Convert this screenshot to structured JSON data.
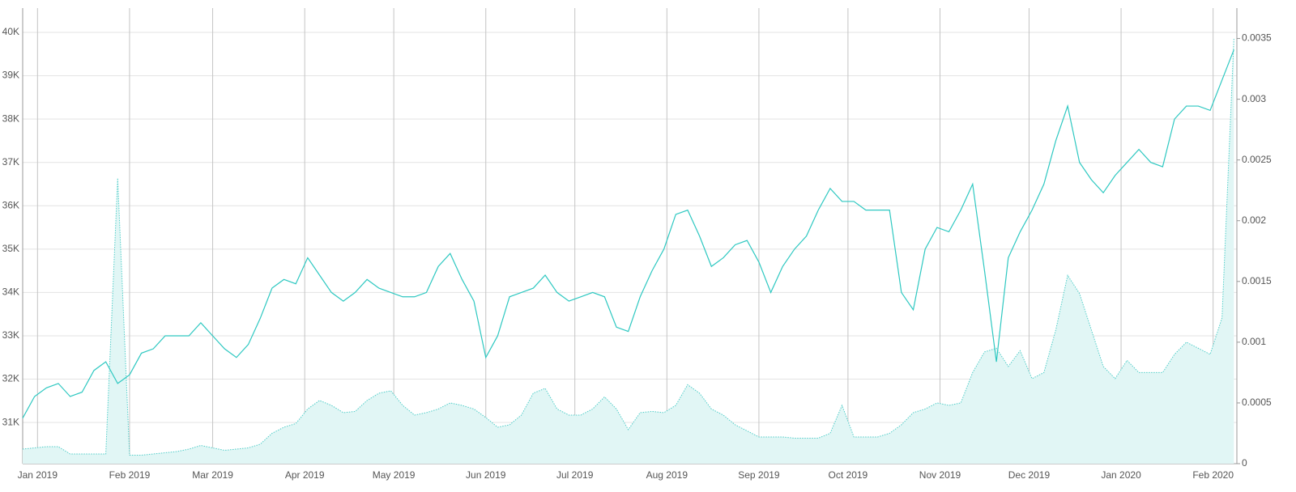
{
  "chart_data": {
    "type": "line",
    "color": "#2ec8c1",
    "area_color": "#e1f6f5",
    "area_stroke": "#4fcdc8",
    "x": [
      -5,
      -1,
      3,
      7,
      11,
      15,
      19,
      23,
      27,
      31,
      35,
      39,
      43,
      47,
      51,
      55,
      59,
      63,
      67,
      71,
      75,
      79,
      83,
      87,
      91,
      95,
      99,
      103,
      107,
      111,
      115,
      119,
      123,
      127,
      131,
      135,
      139,
      143,
      147,
      151,
      155,
      159,
      163,
      167,
      171,
      175,
      179,
      183,
      187,
      191,
      195,
      199,
      203,
      207,
      211,
      215,
      219,
      223,
      227,
      231,
      235,
      239,
      243,
      247,
      251,
      255,
      259,
      263,
      267,
      271,
      275,
      279,
      283,
      287,
      291,
      295,
      299,
      303,
      307,
      311,
      315,
      319,
      323,
      327,
      331,
      335,
      339,
      343,
      347,
      351,
      355,
      359,
      363,
      367,
      371,
      375,
      379,
      383,
      387,
      391,
      395,
      399,
      403
    ],
    "xlim": [
      -5,
      404
    ],
    "xticks": [
      {
        "value": 0,
        "label": "Jan 2019"
      },
      {
        "value": 31,
        "label": "Feb 2019"
      },
      {
        "value": 59,
        "label": "Mar 2019"
      },
      {
        "value": 90,
        "label": "Apr 2019"
      },
      {
        "value": 120,
        "label": "May 2019"
      },
      {
        "value": 151,
        "label": "Jun 2019"
      },
      {
        "value": 181,
        "label": "Jul 2019"
      },
      {
        "value": 212,
        "label": "Aug 2019"
      },
      {
        "value": 243,
        "label": "Sep 2019"
      },
      {
        "value": 273,
        "label": "Oct 2019"
      },
      {
        "value": 304,
        "label": "Nov 2019"
      },
      {
        "value": 334,
        "label": "Dec 2019"
      },
      {
        "value": 365,
        "label": "Jan 2020"
      },
      {
        "value": 396,
        "label": "Feb 2020"
      }
    ],
    "ylim": [
      30050,
      40560
    ],
    "yticks": [
      {
        "value": 31000,
        "label": "31K"
      },
      {
        "value": 32000,
        "label": "32K"
      },
      {
        "value": 33000,
        "label": "33K"
      },
      {
        "value": 34000,
        "label": "34K"
      },
      {
        "value": 35000,
        "label": "35K"
      },
      {
        "value": 36000,
        "label": "36K"
      },
      {
        "value": 37000,
        "label": "37K"
      },
      {
        "value": 38000,
        "label": "38K"
      },
      {
        "value": 39000,
        "label": "39K"
      },
      {
        "value": 40000,
        "label": "40K"
      }
    ],
    "y2lim": [
      0,
      0.00375
    ],
    "y2ticks": [
      0,
      0.0005,
      0.001,
      0.0015,
      0.002,
      0.0025,
      0.003,
      0.0035
    ],
    "series": [
      {
        "type": "area",
        "axis": "y2",
        "values": [
          0.00012,
          0.00013,
          0.00014,
          0.00014,
          8e-05,
          8e-05,
          8e-05,
          8e-05,
          0.00235,
          7e-05,
          7e-05,
          8e-05,
          9e-05,
          0.0001,
          0.00012,
          0.00015,
          0.00013,
          0.00011,
          0.00012,
          0.00013,
          0.00016,
          0.00025,
          0.0003,
          0.00033,
          0.00045,
          0.00052,
          0.00048,
          0.00042,
          0.00043,
          0.00052,
          0.00058,
          0.0006,
          0.00048,
          0.0004,
          0.00042,
          0.00045,
          0.0005,
          0.00048,
          0.00045,
          0.00038,
          0.0003,
          0.00032,
          0.0004,
          0.00058,
          0.00062,
          0.00045,
          0.0004,
          0.0004,
          0.00045,
          0.00055,
          0.00045,
          0.00028,
          0.00042,
          0.00043,
          0.00042,
          0.00048,
          0.00065,
          0.00058,
          0.00045,
          0.0004,
          0.00032,
          0.00027,
          0.00022,
          0.00022,
          0.00022,
          0.00021,
          0.00021,
          0.00021,
          0.00025,
          0.00048,
          0.00022,
          0.00022,
          0.00022,
          0.00025,
          0.00032,
          0.00042,
          0.00045,
          0.0005,
          0.00048,
          0.0005,
          0.00075,
          0.00092,
          0.00095,
          0.0008,
          0.00093,
          0.0007,
          0.00075,
          0.0011,
          0.00155,
          0.0014,
          0.0011,
          0.0008,
          0.0007,
          0.00085,
          0.00075,
          0.00075,
          0.00075,
          0.0009,
          0.001,
          0.00095,
          0.0009,
          0.0012,
          0.0035
        ]
      },
      {
        "type": "line",
        "values": [
          31100,
          31600,
          31800,
          31900,
          31600,
          31700,
          32200,
          32400,
          31900,
          32100,
          32600,
          32700,
          33000,
          33000,
          33000,
          33300,
          33000,
          32700,
          32500,
          32800,
          33400,
          34100,
          34300,
          34200,
          34800,
          34400,
          34000,
          33800,
          34000,
          34300,
          34100,
          34000,
          33900,
          33900,
          34000,
          34600,
          34900,
          34300,
          33800,
          32500,
          33000,
          33900,
          34000,
          34100,
          34400,
          34000,
          33800,
          33900,
          34000,
          33900,
          33200,
          33100,
          33900,
          34500,
          35000,
          35800,
          35900,
          35300,
          34600,
          34800,
          35100,
          35200,
          34700,
          34000,
          34600,
          35000,
          35300,
          35900,
          36400,
          36100,
          36100,
          35900,
          35900,
          35900,
          34000,
          33600,
          35000,
          35500,
          35400,
          35900,
          36500,
          34500,
          32400,
          34800,
          35400,
          35900,
          36500,
          37500,
          38300,
          37000,
          36600,
          36300,
          36700,
          37000,
          37300,
          37000,
          36900,
          38000,
          38300,
          38300,
          38200,
          38900,
          39600
        ]
      }
    ]
  }
}
